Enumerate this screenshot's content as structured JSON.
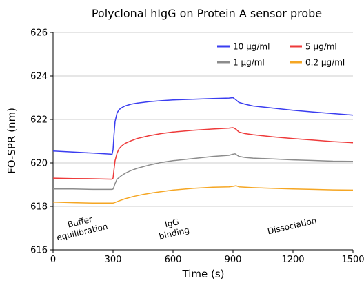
{
  "chart_data": {
    "type": "line",
    "title": "Polyclonal hIgG on Protein A sensor probe",
    "xlabel": "Time (s)",
    "ylabel": "FO-SPR (nm)",
    "xlim": [
      0,
      1500
    ],
    "ylim": [
      616,
      626
    ],
    "xticks": [
      0,
      300,
      600,
      900,
      1200,
      1500
    ],
    "yticks": [
      616,
      618,
      620,
      622,
      624,
      626
    ],
    "grid": "horizontal",
    "legend_placement": "top-right",
    "series": [
      {
        "name": "10 μg/ml",
        "color": "#3a3df0",
        "x": [
          0,
          100,
          200,
          295,
          300,
          305,
          310,
          320,
          330,
          345,
          360,
          390,
          420,
          480,
          540,
          600,
          700,
          800,
          880,
          900,
          915,
          930,
          960,
          1000,
          1100,
          1200,
          1300,
          1400,
          1500
        ],
        "y": [
          620.55,
          620.5,
          620.45,
          620.4,
          620.6,
          621.3,
          621.9,
          622.3,
          622.45,
          622.55,
          622.62,
          622.7,
          622.75,
          622.82,
          622.86,
          622.9,
          622.93,
          622.96,
          622.98,
          623.0,
          622.9,
          622.78,
          622.7,
          622.62,
          622.52,
          622.42,
          622.34,
          622.27,
          622.2
        ]
      },
      {
        "name": "5 μg/ml",
        "color": "#ee3a3a",
        "x": [
          0,
          100,
          200,
          295,
          300,
          305,
          310,
          320,
          330,
          345,
          360,
          390,
          420,
          480,
          540,
          600,
          700,
          800,
          880,
          900,
          915,
          930,
          960,
          1000,
          1100,
          1200,
          1300,
          1400,
          1500
        ],
        "y": [
          619.3,
          619.28,
          619.27,
          619.25,
          619.3,
          619.7,
          620.1,
          620.45,
          620.65,
          620.8,
          620.9,
          621.02,
          621.12,
          621.25,
          621.35,
          621.42,
          621.5,
          621.56,
          621.6,
          621.62,
          621.55,
          621.42,
          621.35,
          621.3,
          621.2,
          621.12,
          621.05,
          620.98,
          620.93
        ]
      },
      {
        "name": "1 μg/ml",
        "color": "#8c8c8c",
        "x": [
          0,
          100,
          200,
          295,
          300,
          305,
          310,
          320,
          340,
          360,
          390,
          420,
          480,
          540,
          600,
          700,
          800,
          880,
          900,
          910,
          930,
          960,
          1000,
          1100,
          1200,
          1300,
          1400,
          1500
        ],
        "y": [
          618.8,
          618.8,
          618.78,
          618.78,
          618.8,
          618.9,
          619.05,
          619.25,
          619.4,
          619.52,
          619.65,
          619.75,
          619.9,
          620.02,
          620.1,
          620.2,
          620.3,
          620.35,
          620.4,
          620.42,
          620.3,
          620.25,
          620.22,
          620.18,
          620.14,
          620.11,
          620.08,
          620.07
        ]
      },
      {
        "name": "0.2 μg/ml",
        "color": "#f5a623",
        "x": [
          0,
          100,
          200,
          300,
          310,
          330,
          360,
          400,
          450,
          500,
          600,
          700,
          800,
          880,
          900,
          915,
          930,
          960,
          1000,
          1100,
          1200,
          1300,
          1400,
          1500
        ],
        "y": [
          618.2,
          618.17,
          618.15,
          618.15,
          618.18,
          618.25,
          618.35,
          618.45,
          618.55,
          618.63,
          618.75,
          618.83,
          618.88,
          618.9,
          618.92,
          618.95,
          618.9,
          618.88,
          618.86,
          618.83,
          618.8,
          618.78,
          618.76,
          618.75
        ]
      }
    ],
    "annotations": [
      {
        "lines": [
          "Buffer",
          "equilibration"
        ],
        "x": 140,
        "y": 617.05
      },
      {
        "lines": [
          "IgG",
          "binding"
        ],
        "x": 600,
        "y": 617.0
      },
      {
        "lines": [
          "Dissociation"
        ],
        "x": 1195,
        "y": 617.1
      }
    ]
  }
}
